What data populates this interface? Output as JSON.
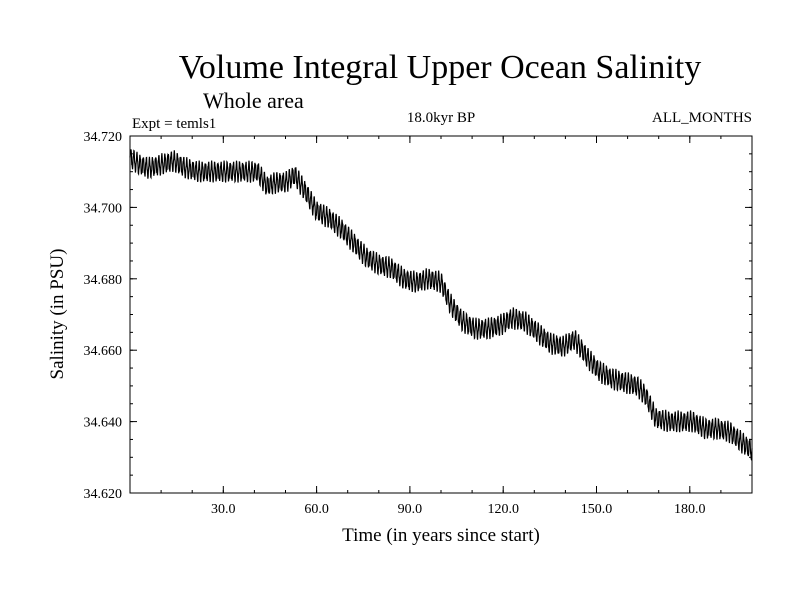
{
  "chart_data": {
    "type": "line",
    "title": "Volume Integral Upper Ocean Salinity",
    "subtitle": "Whole area",
    "experiment": "Expt = temls1",
    "period": "18.0kyr BP",
    "months": "ALL_MONTHS",
    "xlabel": "Time (in years since start)",
    "ylabel": "Salinity (in PSU)",
    "xlim": [
      0,
      200
    ],
    "ylim": [
      34.62,
      34.72
    ],
    "xticks": [
      30,
      60,
      90,
      120,
      150,
      180
    ],
    "xtick_labels": [
      "30.0",
      "60.0",
      "90.0",
      "120.0",
      "150.0",
      "180.0"
    ],
    "yticks": [
      34.62,
      34.64,
      34.66,
      34.68,
      34.7,
      34.72
    ],
    "ytick_labels": [
      "34.620",
      "34.640",
      "34.660",
      "34.680",
      "34.700",
      "34.720"
    ],
    "seasonal_amplitude": 0.0025,
    "samples_per_year": 12,
    "series": [
      {
        "name": "Salinity",
        "trend": [
          [
            0,
            34.714
          ],
          [
            3,
            34.712
          ],
          [
            6,
            34.711
          ],
          [
            10,
            34.712
          ],
          [
            14,
            34.713
          ],
          [
            18,
            34.711
          ],
          [
            22,
            34.71
          ],
          [
            30,
            34.71
          ],
          [
            41,
            34.71
          ],
          [
            44,
            34.706
          ],
          [
            47,
            34.707
          ],
          [
            50,
            34.707
          ],
          [
            53,
            34.709
          ],
          [
            56,
            34.705
          ],
          [
            60,
            34.699
          ],
          [
            64,
            34.697
          ],
          [
            68,
            34.694
          ],
          [
            72,
            34.69
          ],
          [
            76,
            34.686
          ],
          [
            80,
            34.684
          ],
          [
            84,
            34.683
          ],
          [
            88,
            34.68
          ],
          [
            92,
            34.679
          ],
          [
            96,
            34.68
          ],
          [
            100,
            34.679
          ],
          [
            103,
            34.673
          ],
          [
            107,
            34.668
          ],
          [
            111,
            34.666
          ],
          [
            115,
            34.666
          ],
          [
            119,
            34.667
          ],
          [
            123,
            34.669
          ],
          [
            127,
            34.668
          ],
          [
            131,
            34.665
          ],
          [
            135,
            34.662
          ],
          [
            139,
            34.661
          ],
          [
            143,
            34.663
          ],
          [
            147,
            34.658
          ],
          [
            151,
            34.654
          ],
          [
            155,
            34.652
          ],
          [
            159,
            34.651
          ],
          [
            163,
            34.65
          ],
          [
            166,
            34.647
          ],
          [
            169,
            34.641
          ],
          [
            173,
            34.64
          ],
          [
            177,
            34.64
          ],
          [
            181,
            34.64
          ],
          [
            185,
            34.638
          ],
          [
            189,
            34.638
          ],
          [
            193,
            34.637
          ],
          [
            197,
            34.634
          ],
          [
            200,
            34.632
          ]
        ]
      }
    ]
  }
}
